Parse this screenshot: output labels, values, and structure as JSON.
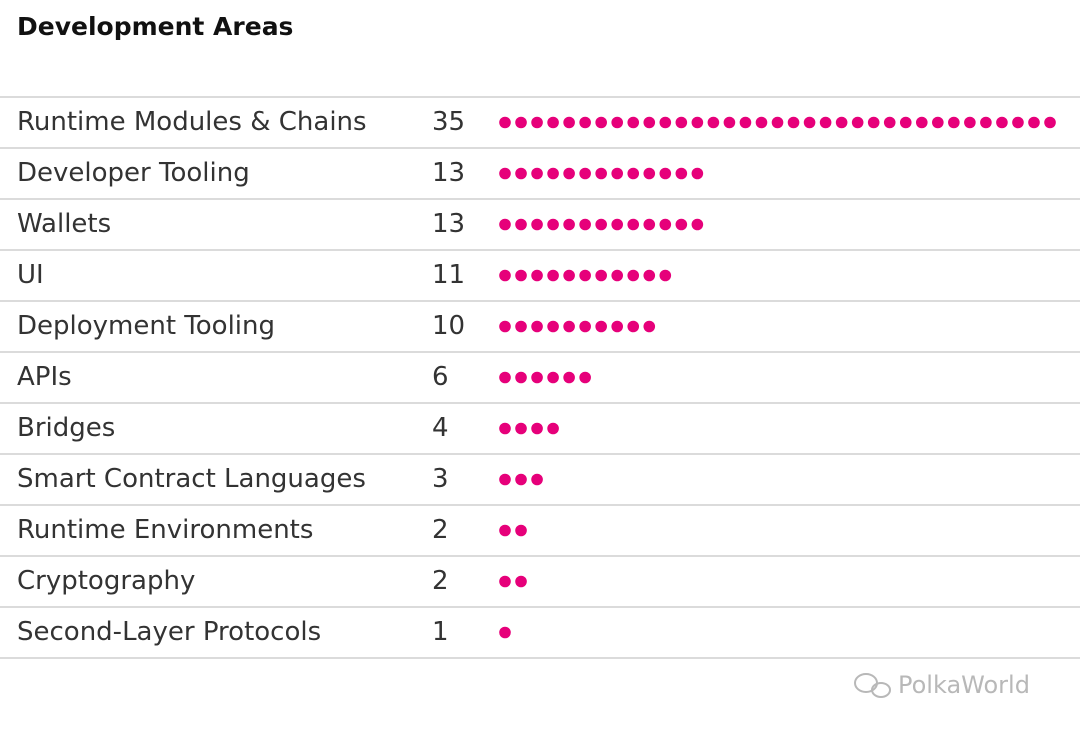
{
  "chart_data": {
    "type": "dot",
    "title": "Development Areas",
    "categories": [
      "Runtime Modules & Chains",
      "Developer Tooling",
      "Wallets",
      "UI",
      "Deployment Tooling",
      "APIs",
      "Bridges",
      "Smart Contract Languages",
      "Runtime Environments",
      "Cryptography",
      "Second-Layer Protocols"
    ],
    "values": [
      35,
      13,
      13,
      11,
      10,
      6,
      4,
      3,
      2,
      2,
      1
    ],
    "color": "#e6007a",
    "watermark": "PolkaWorld"
  }
}
